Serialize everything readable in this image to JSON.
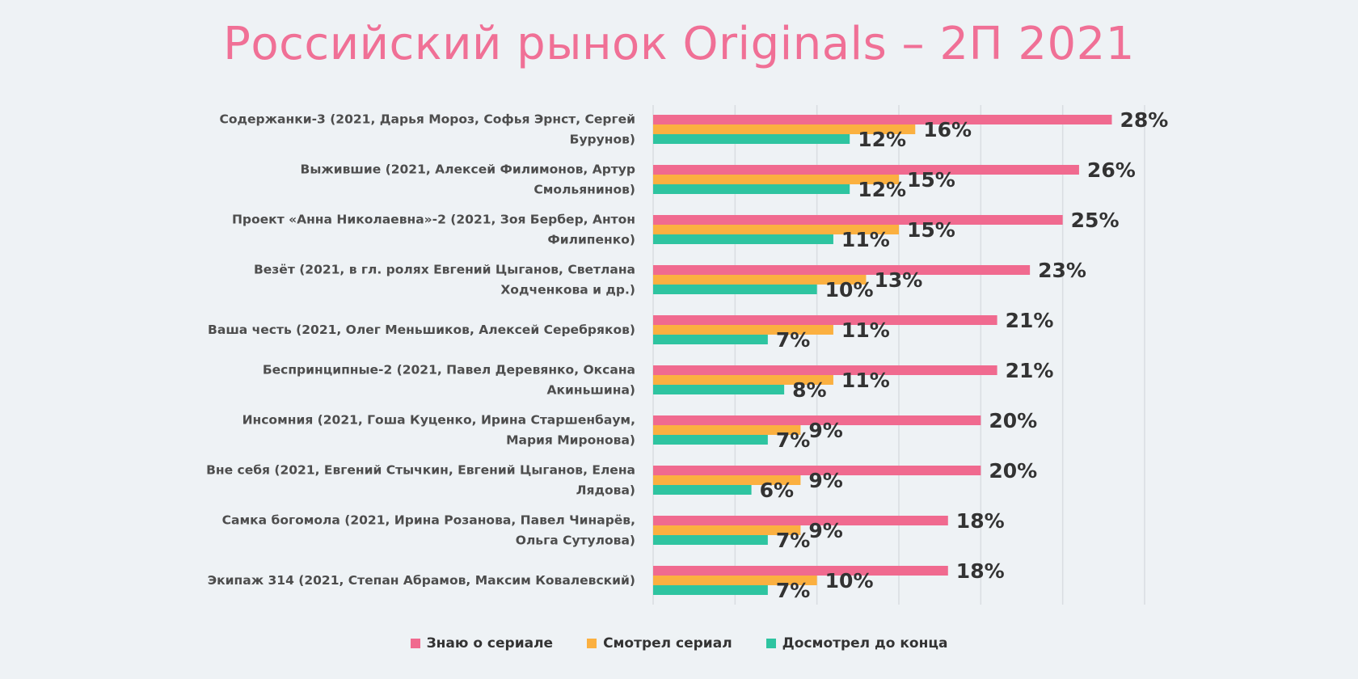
{
  "chart_data": {
    "type": "bar",
    "orientation": "horizontal",
    "title": "Российский рынок Originals – 2П 2021",
    "categories": [
      [
        "Содержанки-3 (2021, Дарья Мороз, Софья Эрнст, Сергей",
        "Бурунов)"
      ],
      [
        "Выжившие (2021, Алексей Филимонов, Артур",
        "Смольянинов)"
      ],
      [
        "Проект «Анна Николаевна»-2 (2021, Зоя Бербер, Антон",
        "Филипенко)"
      ],
      [
        "Везёт (2021, в гл. ролях Евгений Цыганов, Светлана",
        "Ходченкова и др.)"
      ],
      [
        "Ваша честь (2021, Олег Меньшиков, Алексей Серебряков)"
      ],
      [
        "Беспринципные-2 (2021, Павел Деревянко, Оксана",
        "Акиньшина)"
      ],
      [
        "Инсомния (2021, Гоша Куценко, Ирина Старшенбаум,",
        "Мария Миронова)"
      ],
      [
        "Вне себя (2021, Евгений Стычкин, Евгений Цыганов, Елена",
        "Лядова)"
      ],
      [
        "Самка богомола (2021, Ирина Розанова, Павел Чинарёв,",
        "Ольга Сутулова)"
      ],
      [
        "Экипаж 314 (2021, Степан Абрамов, Максим Ковалевский)"
      ]
    ],
    "series": [
      {
        "name": "Знаю о сериале",
        "color": "#f06a8f",
        "values": [
          28,
          26,
          25,
          23,
          21,
          21,
          20,
          20,
          18,
          18
        ]
      },
      {
        "name": "Смотрел сериал",
        "color": "#fbb040",
        "values": [
          16,
          15,
          15,
          13,
          11,
          11,
          9,
          9,
          9,
          10
        ]
      },
      {
        "name": "Досмотрел до конца",
        "color": "#2ec4a0",
        "values": [
          12,
          12,
          11,
          10,
          7,
          8,
          7,
          6,
          7,
          7
        ]
      }
    ],
    "value_suffix": "%",
    "xlim": [
      0,
      30
    ],
    "grid": true,
    "legend_position": "bottom"
  }
}
